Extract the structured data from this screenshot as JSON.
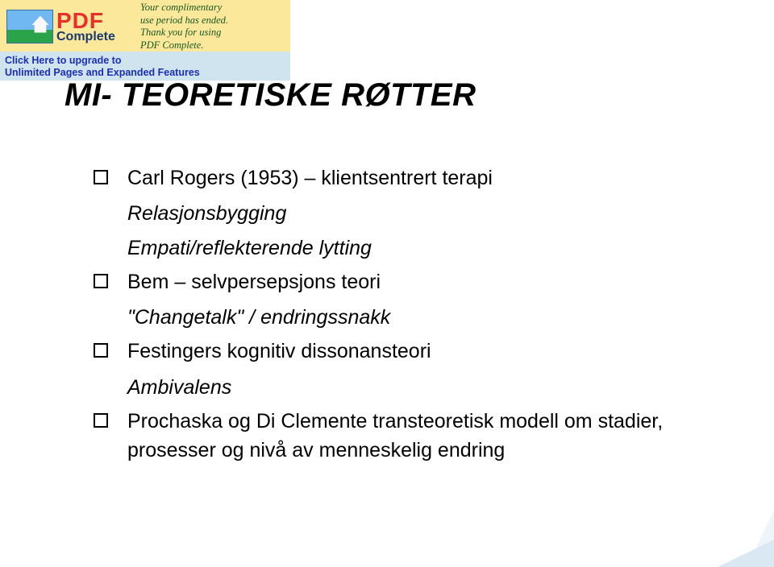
{
  "watermark": {
    "pdf": "PDF",
    "complete": "Complete",
    "msg_l1": "Your complimentary",
    "msg_l2": "use period has ended.",
    "msg_l3": "Thank you for using",
    "msg_l4": "PDF Complete.",
    "link1": "Click Here to upgrade to",
    "link2": "Unlimited Pages and Expanded Features"
  },
  "slide": {
    "title": "MI- TEORETISKE RØTTER",
    "b1": "Carl Rogers (1953) – klientsentrert terapi",
    "b1_sub1": "Relasjonsbygging",
    "b1_sub2": "Empati/reflekterende lytting",
    "b2": "Bem – selvpersepsjons teori",
    "b2_sub1": "\"Changetalk\" / endringssnakk",
    "b3": "Festingers kognitiv dissonansteori",
    "b3_sub1": "Ambivalens",
    "b4": "Prochaska og Di Clemente transteoretisk modell om stadier, prosesser og nivå av menneskelig endring"
  },
  "colors": {
    "banner_bg": "#fce89a",
    "banner_strip": "#cfe4ee",
    "link": "#1b2fb4",
    "msg": "#185922",
    "pdf_red": "#e7302a",
    "complete_blue": "#193a6e"
  }
}
